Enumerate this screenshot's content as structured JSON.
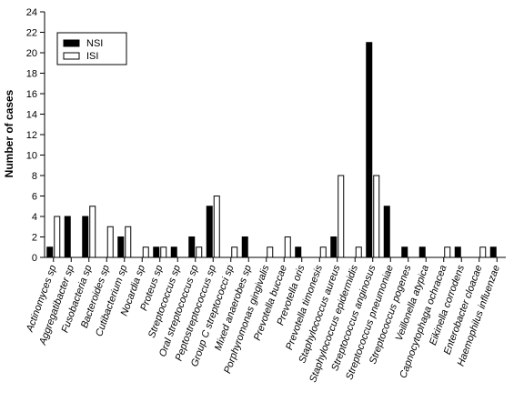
{
  "chart_data": {
    "type": "bar",
    "ylabel": "Number of cases",
    "xlabel": "",
    "ylim": [
      0,
      24
    ],
    "yticks": [
      "0",
      "2",
      "4",
      "6",
      "8",
      "10",
      "12",
      "14",
      "16",
      "18",
      "20",
      "22",
      "24"
    ],
    "grid": false,
    "legend_position": "top-left",
    "categories": [
      "Actinomyces sp",
      "Aggregatibacter sp",
      "Fusobacteria sp",
      "Bacteroides sp",
      "Cutibacterium sp",
      "Nocardia sp",
      "Proteus sp",
      "Streptococcus sp",
      "Oral streptococcus sp",
      "Peptostreptococcus sp",
      "Group C streptococci sp",
      "Mixed anaerobes sp",
      "Porphyromonas gingivalis",
      "Prevotella buccae",
      "Prevotella oris",
      "Prevotella timonesis",
      "Staphylococcus aureus",
      "Staphylococcus epidermidis",
      "Streptococcus anginosus",
      "Streptococcus pneumoniae",
      "Streptococcus pogenes",
      "Veillonella atypica",
      "Capnocytophaga ochracea",
      "Eikinella corrodens",
      "Enterobacter cloacae",
      "Haemophilus influenzae"
    ],
    "series": [
      {
        "name": "NSI",
        "color": "#000000",
        "values": [
          1,
          4,
          4,
          0,
          2,
          0,
          1,
          1,
          2,
          5,
          0,
          2,
          0,
          0,
          1,
          0,
          2,
          0,
          21,
          5,
          1,
          1,
          0,
          1,
          0,
          1
        ]
      },
      {
        "name": "ISI",
        "color": "#ffffff",
        "values": [
          4,
          0,
          5,
          3,
          3,
          1,
          1,
          0,
          1,
          6,
          1,
          0,
          1,
          2,
          0,
          1,
          8,
          1,
          8,
          0,
          0,
          0,
          1,
          0,
          1,
          0
        ]
      }
    ]
  }
}
